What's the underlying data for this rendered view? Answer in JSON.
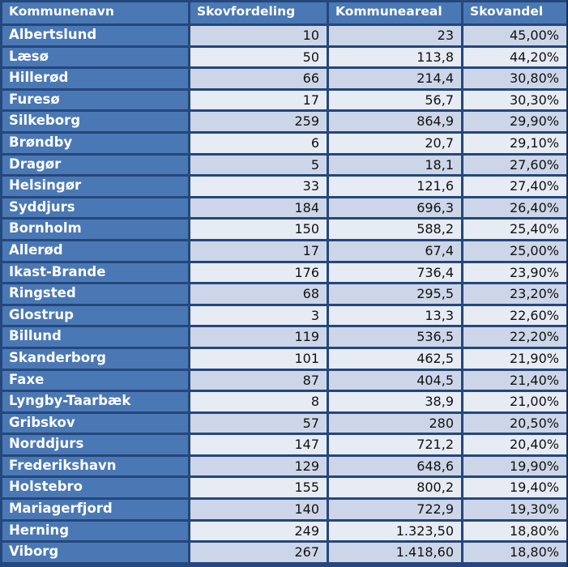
{
  "table": {
    "headers": [
      "Kommunenavn",
      "Skovfordeling",
      "Kommuneareal",
      "Skovandel"
    ],
    "rows": [
      [
        "Albertslund",
        "10",
        "23",
        "45,00%"
      ],
      [
        "Læsø",
        "50",
        "113,8",
        "44,20%"
      ],
      [
        "Hillerød",
        "66",
        "214,4",
        "30,80%"
      ],
      [
        "Furesø",
        "17",
        "56,7",
        "30,30%"
      ],
      [
        "Silkeborg",
        "259",
        "864,9",
        "29,90%"
      ],
      [
        "Brøndby",
        "6",
        "20,7",
        "29,10%"
      ],
      [
        "Dragør",
        "5",
        "18,1",
        "27,60%"
      ],
      [
        "Helsingør",
        "33",
        "121,6",
        "27,40%"
      ],
      [
        "Syddjurs",
        "184",
        "696,3",
        "26,40%"
      ],
      [
        "Bornholm",
        "150",
        "588,2",
        "25,40%"
      ],
      [
        "Allerød",
        "17",
        "67,4",
        "25,00%"
      ],
      [
        "Ikast-Brande",
        "176",
        "736,4",
        "23,90%"
      ],
      [
        "Ringsted",
        "68",
        "295,5",
        "23,20%"
      ],
      [
        "Glostrup",
        "3",
        "13,3",
        "22,60%"
      ],
      [
        "Billund",
        "119",
        "536,5",
        "22,20%"
      ],
      [
        "Skanderborg",
        "101",
        "462,5",
        "21,90%"
      ],
      [
        "Faxe",
        "87",
        "404,5",
        "21,40%"
      ],
      [
        "Lyngby-Taarbæk",
        "8",
        "38,9",
        "21,00%"
      ],
      [
        "Gribskov",
        "57",
        "280",
        "20,50%"
      ],
      [
        "Norddjurs",
        "147",
        "721,2",
        "20,40%"
      ],
      [
        "Frederikshavn",
        "129",
        "648,6",
        "19,90%"
      ],
      [
        "Holstebro",
        "155",
        "800,2",
        "19,40%"
      ],
      [
        "Mariagerfjord",
        "140",
        "722,9",
        "19,30%"
      ],
      [
        "Herning",
        "249",
        "1.323,50",
        "18,80%"
      ],
      [
        "Viborg",
        "267",
        "1.418,60",
        "18,80%"
      ]
    ]
  },
  "colors": {
    "header_bg": "#4a78b4",
    "border": "#24477c",
    "row_odd": "#cdd6e8",
    "row_even": "#e6ebf4"
  }
}
